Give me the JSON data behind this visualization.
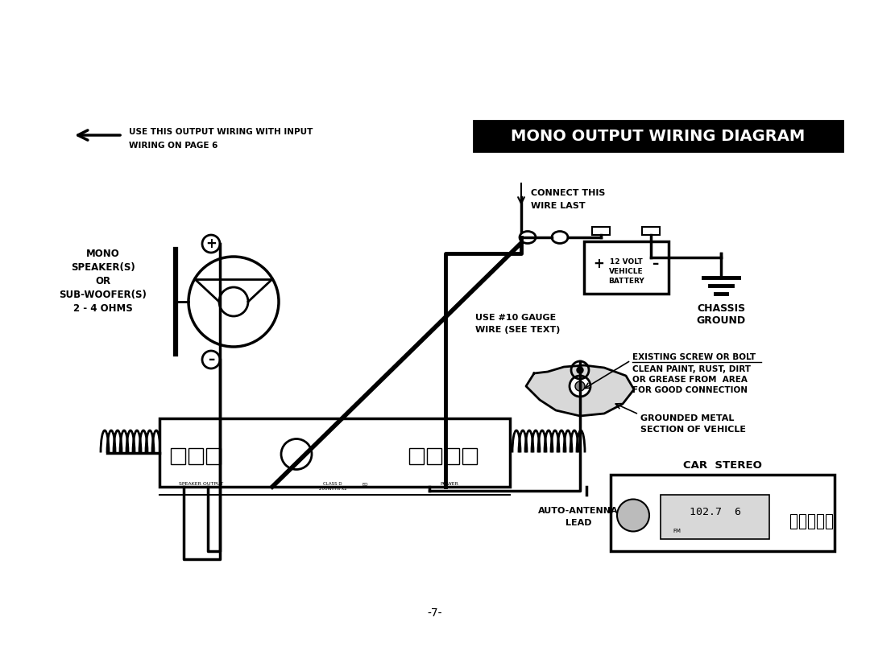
{
  "bg_color": "#ffffff",
  "title": "MONO OUTPUT WIRING DIAGRAM",
  "page_number": "-7-",
  "arrow_note_line1": "USE THIS OUTPUT WIRING WITH INPUT",
  "arrow_note_line2": "WIRING ON PAGE 6",
  "label_mono_1": "MONO",
  "label_mono_2": "SPEAKER(S)",
  "label_mono_3": "OR",
  "label_mono_4": "SUB-WOOFER(S)",
  "label_mono_5": "2 - 4 OHMS",
  "label_connect_1": "CONNECT THIS",
  "label_connect_2": "WIRE LAST",
  "label_gauge_1": "USE #10 GAUGE",
  "label_gauge_2": "WIRE (SEE TEXT)",
  "label_battery": "12 VOLT\nVEHICLE\nBATTERY",
  "label_chassis_1": "CHASSIS",
  "label_chassis_2": "GROUND",
  "label_screw_u": "EXISTING SCREW OR BOLT",
  "label_screw_2": "CLEAN PAINT, RUST, DIRT",
  "label_screw_3": "OR GREASE FROM  AREA",
  "label_screw_4": "FOR GOOD CONNECTION",
  "label_grounded_1": "GROUNDED METAL",
  "label_grounded_2": "SECTION OF VEHICLE",
  "label_antenna_1": "AUTO-ANTENNA",
  "label_antenna_2": "LEAD",
  "label_car_stereo": "CAR  STEREO"
}
